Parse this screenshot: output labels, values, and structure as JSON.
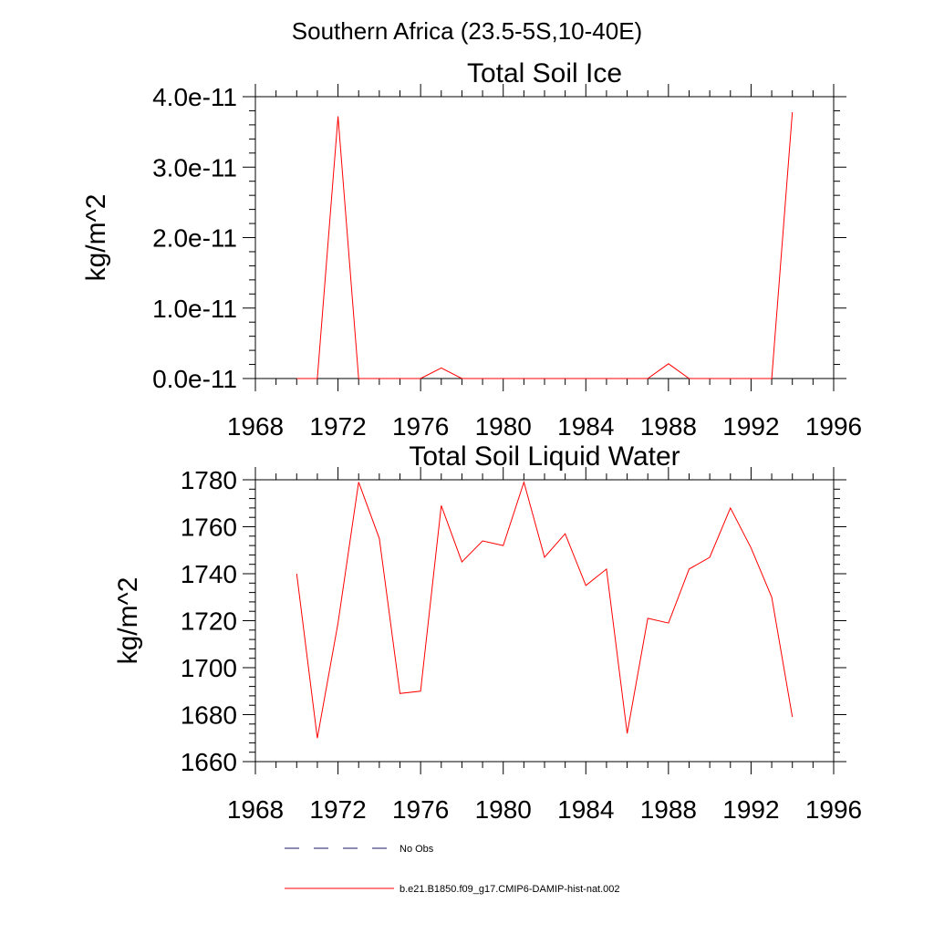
{
  "figure_title": "Southern Africa (23.5-5S,10-40E)",
  "chart_data": [
    {
      "type": "line",
      "title": "Total Soil Ice",
      "ylabel": "kg/m^2",
      "xlim": [
        1968,
        1996
      ],
      "ylim": [
        0,
        4e-11
      ],
      "x_ticks": [
        1968,
        1972,
        1976,
        1980,
        1984,
        1988,
        1992,
        1996
      ],
      "x_tick_labels": [
        "1968",
        "1972",
        "1976",
        "1980",
        "1984",
        "1988",
        "1992",
        "1996"
      ],
      "y_ticks": [
        0,
        1e-11,
        2e-11,
        3e-11,
        4e-11
      ],
      "y_tick_labels": [
        "0.0e-11",
        "1.0e-11",
        "2.0e-11",
        "3.0e-11",
        "4.0e-11"
      ],
      "grid": false,
      "series": [
        {
          "name": "b.e21.B1850.f09_g17.CMIP6-DAMIP-hist-nat.002",
          "color": "#ff0000",
          "x": [
            1970,
            1971,
            1972,
            1973,
            1974,
            1975,
            1976,
            1977,
            1978,
            1979,
            1980,
            1981,
            1982,
            1983,
            1984,
            1985,
            1986,
            1987,
            1988,
            1989,
            1990,
            1991,
            1992,
            1993,
            1994
          ],
          "y": [
            0,
            0,
            3.72e-11,
            0,
            0,
            0,
            0,
            1.5e-12,
            0,
            0,
            0,
            0,
            0,
            0,
            0,
            0,
            0,
            0,
            2.1e-12,
            0,
            0,
            0,
            0,
            0,
            3.78e-11
          ]
        }
      ]
    },
    {
      "type": "line",
      "title": "Total Soil Liquid Water",
      "ylabel": "kg/m^2",
      "xlim": [
        1968,
        1996
      ],
      "ylim": [
        1660,
        1780
      ],
      "x_ticks": [
        1968,
        1972,
        1976,
        1980,
        1984,
        1988,
        1992,
        1996
      ],
      "x_tick_labels": [
        "1968",
        "1972",
        "1976",
        "1980",
        "1984",
        "1988",
        "1992",
        "1996"
      ],
      "y_ticks": [
        1660,
        1680,
        1700,
        1720,
        1740,
        1760,
        1780
      ],
      "y_tick_labels": [
        "1660",
        "1680",
        "1700",
        "1720",
        "1740",
        "1760",
        "1780"
      ],
      "grid": false,
      "series": [
        {
          "name": "b.e21.B1850.f09_g17.CMIP6-DAMIP-hist-nat.002",
          "color": "#ff0000",
          "x": [
            1970,
            1971,
            1972,
            1973,
            1974,
            1975,
            1976,
            1977,
            1978,
            1979,
            1980,
            1981,
            1982,
            1983,
            1984,
            1985,
            1986,
            1987,
            1988,
            1989,
            1990,
            1991,
            1992,
            1993,
            1994
          ],
          "y": [
            1740,
            1670,
            1719,
            1779,
            1755,
            1689,
            1690,
            1769,
            1745,
            1754,
            1752,
            1779,
            1747,
            1757,
            1735,
            1742,
            1672,
            1721,
            1719,
            1742,
            1747,
            1768,
            1751,
            1730,
            1679
          ]
        }
      ]
    }
  ],
  "legend": {
    "placement": "bottom",
    "items": [
      {
        "label": "No Obs",
        "style": "dashed",
        "color": "#1a1a5e"
      },
      {
        "label": "b.e21.B1850.f09_g17.CMIP6-DAMIP-hist-nat.002",
        "style": "solid",
        "color": "#ff0000"
      }
    ]
  }
}
